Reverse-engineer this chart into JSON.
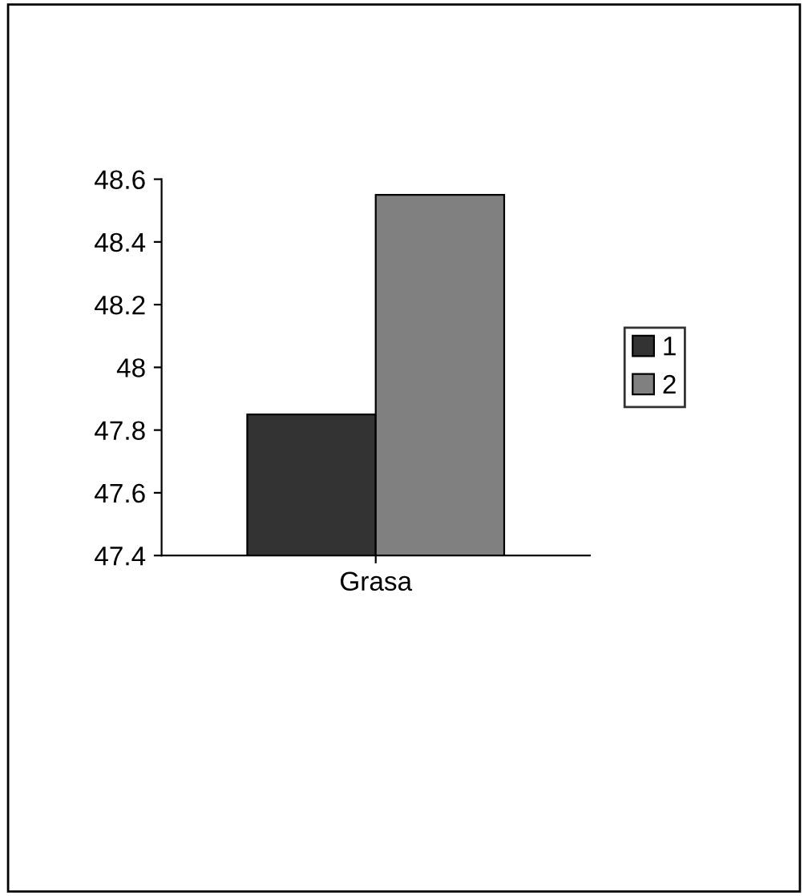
{
  "chart_data": {
    "type": "bar",
    "categories": [
      "Grasa"
    ],
    "series": [
      {
        "name": "1",
        "color": "#333333",
        "values": [
          47.85
        ]
      },
      {
        "name": "2",
        "color": "#808080",
        "values": [
          48.55
        ]
      }
    ],
    "ylim": [
      47.4,
      48.6
    ],
    "yticks": [
      47.4,
      47.6,
      47.8,
      48,
      48.2,
      48.4,
      48.6
    ],
    "grid": false,
    "legend": "right"
  }
}
